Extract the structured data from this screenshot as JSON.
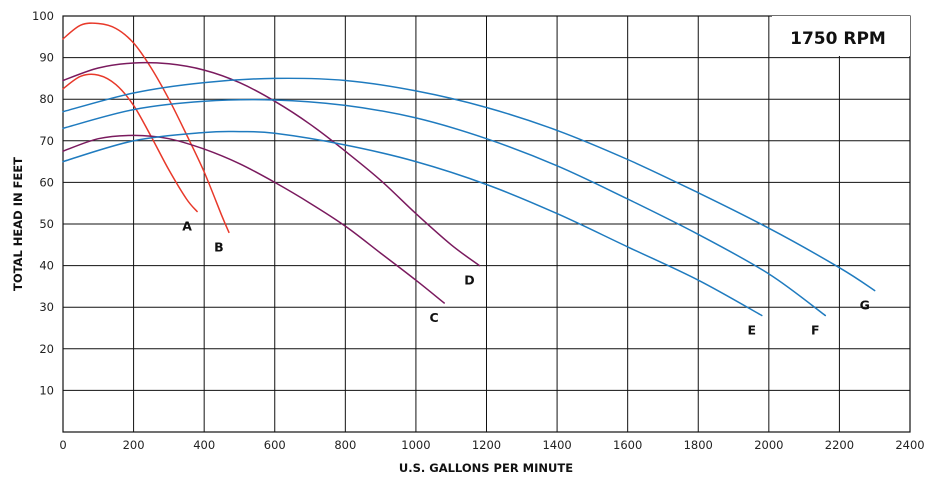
{
  "chart_data": {
    "type": "line",
    "annotation": "1750 RPM",
    "xlabel": "U.S. GALLONS PER MINUTE",
    "ylabel": "TOTAL HEAD IN FEET",
    "xlim": [
      0,
      2400
    ],
    "ylim": [
      0,
      100
    ],
    "x_ticks": [
      "0",
      "200",
      "400",
      "600",
      "800",
      "1000",
      "1200",
      "1400",
      "1600",
      "1800",
      "2000",
      "2200",
      "2400"
    ],
    "y_ticks": [
      "10",
      "20",
      "30",
      "40",
      "50",
      "60",
      "70",
      "80",
      "90",
      "100"
    ],
    "grid": true,
    "colors": {
      "red": "#e8392a",
      "purple": "#7a1a5e",
      "blue": "#1f7bbf"
    },
    "series": [
      {
        "name": "A",
        "color": "red",
        "x": [
          0,
          50,
          100,
          150,
          200,
          250,
          300,
          350,
          380
        ],
        "y": [
          82.5,
          85.5,
          85.8,
          83.5,
          78.5,
          71,
          63,
          56,
          53
        ]
      },
      {
        "name": "B",
        "color": "red",
        "x": [
          0,
          50,
          100,
          150,
          200,
          250,
          300,
          350,
          400,
          450,
          470
        ],
        "y": [
          94.5,
          97.8,
          98.2,
          97,
          93.5,
          87.5,
          80,
          71.5,
          62.5,
          52,
          48
        ]
      },
      {
        "name": "C",
        "color": "purple",
        "x": [
          0,
          100,
          200,
          300,
          400,
          500,
          600,
          700,
          800,
          900,
          1000,
          1080
        ],
        "y": [
          67.5,
          70.5,
          71.3,
          70.5,
          68,
          64.5,
          60,
          55,
          49.5,
          43,
          36.5,
          31
        ]
      },
      {
        "name": "D",
        "color": "purple",
        "x": [
          0,
          100,
          200,
          300,
          400,
          500,
          600,
          700,
          800,
          900,
          1000,
          1100,
          1180
        ],
        "y": [
          84.5,
          87.5,
          88.7,
          88.5,
          87,
          84,
          79.5,
          74,
          67.5,
          60.5,
          52.5,
          45,
          40
        ]
      },
      {
        "name": "E",
        "color": "blue",
        "x": [
          0,
          200,
          400,
          500,
          600,
          800,
          1000,
          1200,
          1400,
          1600,
          1800,
          1980
        ],
        "y": [
          65,
          70,
          72,
          72.2,
          71.8,
          69,
          65,
          59.5,
          52.5,
          44.5,
          36.5,
          28
        ]
      },
      {
        "name": "F",
        "color": "blue",
        "x": [
          0,
          200,
          400,
          600,
          800,
          1000,
          1200,
          1400,
          1600,
          1800,
          2000,
          2160
        ],
        "y": [
          73,
          77.5,
          79.5,
          79.8,
          78.5,
          75.5,
          70.5,
          64,
          56,
          47.5,
          38,
          28
        ]
      },
      {
        "name": "G",
        "color": "blue",
        "x": [
          0,
          200,
          400,
          600,
          800,
          1000,
          1200,
          1400,
          1600,
          1800,
          2000,
          2200,
          2300
        ],
        "y": [
          77,
          81.5,
          84,
          85,
          84.5,
          82,
          78,
          72.5,
          65.5,
          57.5,
          49,
          39.5,
          34
        ]
      }
    ]
  }
}
